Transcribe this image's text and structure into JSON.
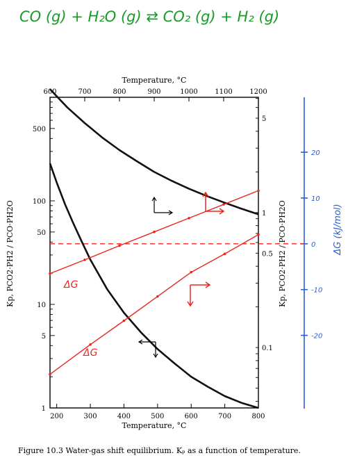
{
  "equation": {
    "text": "CO (g) + H₂O (g) ⇄ CO₂ (g) + H₂ (g)",
    "color": "#1a9a2a"
  },
  "caption": "Figure 10.3  Water-gas shift equilibrium. Kₚ as a function of temperature.",
  "colors": {
    "black_curves": "#111111",
    "red_annotations": "#e8281e",
    "blue_axis": "#2a5fd0"
  },
  "chart_data": {
    "type": "line",
    "title": "",
    "top_axis": {
      "label": "Temperature, °C",
      "range": [
        600,
        1200
      ],
      "ticks": [
        600,
        700,
        800,
        900,
        1000,
        1100,
        1200
      ]
    },
    "bottom_axis": {
      "label": "Temperature, °C",
      "range": [
        180,
        800
      ],
      "ticks": [
        200,
        300,
        400,
        500,
        600,
        700,
        800
      ]
    },
    "left_axis": {
      "label": "Kp, PCO2·PH2 / PCO·PH2O",
      "scale": "log",
      "range": [
        1,
        1000
      ],
      "tick_labels": [
        1,
        5,
        10,
        50,
        100,
        500
      ]
    },
    "right_axis": {
      "label": "Kp, PCO2·PH2 / PCO·PH2O",
      "scale": "log",
      "range": [
        0.0357,
        7.14
      ],
      "tick_labels": [
        0.1,
        0.5,
        1,
        5
      ]
    },
    "dg_axis": {
      "label": "ΔG (kJ/mol)",
      "range": [
        -36,
        32
      ],
      "tick_labels": [
        20,
        10,
        0,
        -10,
        -20
      ]
    },
    "series": [
      {
        "name": "",
        "color": "#111111",
        "axes": "bottom-left",
        "x": [
          180,
          200,
          225,
          250,
          275,
          300,
          350,
          400,
          450,
          500,
          550,
          600,
          650,
          700,
          750,
          800
        ],
        "y": [
          230,
          150,
          92,
          60,
          40,
          27,
          14,
          8.3,
          5.4,
          3.7,
          2.7,
          2.0,
          1.6,
          1.3,
          1.12,
          1.0
        ]
      },
      {
        "name": "",
        "color": "#111111",
        "axes": "top-right",
        "x": [
          600,
          650,
          700,
          750,
          800,
          850,
          900,
          950,
          1000,
          1050,
          1100,
          1150,
          1200
        ],
        "y": [
          8.2,
          6.0,
          4.6,
          3.6,
          2.9,
          2.4,
          2.0,
          1.72,
          1.5,
          1.33,
          1.19,
          1.07,
          0.97
        ]
      },
      {
        "name": "ΔG",
        "color": "#e8281e",
        "axes": "bottom-dG",
        "x": [
          180,
          300,
          400,
          500,
          600,
          700,
          800
        ],
        "y": [
          -28.5,
          -22,
          -16.8,
          -11.5,
          -6.2,
          -2.2,
          2
        ]
      },
      {
        "name": "ΔG",
        "color": "#e8281e",
        "axes": "top-dG",
        "x": [
          600,
          700,
          800,
          900,
          1000,
          1100,
          1200
        ],
        "y": [
          -6.5,
          -3.5,
          -0.4,
          2.6,
          5.6,
          8.6,
          11.6
        ]
      }
    ],
    "zero_line": {
      "axis": "dG",
      "value": 0,
      "style": "dashed",
      "color": "#e8281e"
    },
    "annotations": [
      {
        "text": "ΔG",
        "color": "#e8281e"
      },
      {
        "text": "ΔG",
        "color": "#e8281e"
      }
    ],
    "grid": false,
    "legend": "none"
  }
}
